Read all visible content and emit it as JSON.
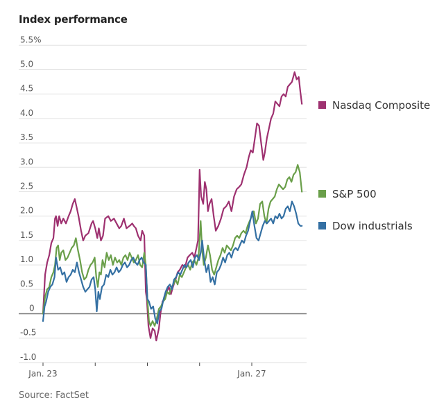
{
  "title": "Index performance",
  "source": "Source: FactSet",
  "chart_data": {
    "type": "line",
    "title": "Index performance",
    "xlabel": "",
    "ylabel": "",
    "ylim": [
      -1.0,
      5.5
    ],
    "xlim": [
      0,
      5
    ],
    "grid": true,
    "y_ticks": [
      {
        "value": 5.5,
        "label": "5.5%"
      },
      {
        "value": 5.0,
        "label": "5.0"
      },
      {
        "value": 4.5,
        "label": "4.5"
      },
      {
        "value": 4.0,
        "label": "4.0"
      },
      {
        "value": 3.5,
        "label": "3.5"
      },
      {
        "value": 3.0,
        "label": "3.0"
      },
      {
        "value": 2.5,
        "label": "2.5"
      },
      {
        "value": 2.0,
        "label": "2.0"
      },
      {
        "value": 1.5,
        "label": "1.5"
      },
      {
        "value": 1.0,
        "label": "1.0"
      },
      {
        "value": 0.5,
        "label": "0.5"
      },
      {
        "value": 0,
        "label": "0"
      },
      {
        "value": -0.5,
        "label": "-0.5"
      },
      {
        "value": -1.0,
        "label": "-1.0"
      }
    ],
    "x_ticks": [
      {
        "value": 0,
        "label": "Jan. 23"
      },
      {
        "value": 1,
        "label": ""
      },
      {
        "value": 2,
        "label": ""
      },
      {
        "value": 3,
        "label": ""
      },
      {
        "value": 4,
        "label": "Jan. 27"
      }
    ],
    "legend_placement": "right",
    "series": [
      {
        "name": "Nasdaq Composite",
        "color": "#9e3170",
        "x": [
          0,
          0.04,
          0.08,
          0.12,
          0.16,
          0.2,
          0.23,
          0.25,
          0.28,
          0.31,
          0.35,
          0.39,
          0.44,
          0.49,
          0.53,
          0.57,
          0.61,
          0.64,
          0.68,
          0.73,
          0.77,
          0.81,
          0.87,
          0.93,
          0.96,
          1.0,
          1.04,
          1.07,
          1.11,
          1.15,
          1.19,
          1.25,
          1.3,
          1.36,
          1.41,
          1.46,
          1.5,
          1.55,
          1.6,
          1.66,
          1.71,
          1.74,
          1.78,
          1.82,
          1.87,
          1.9,
          1.94,
          1.97,
          1.99,
          2.02,
          2.06,
          2.1,
          2.14,
          2.17,
          2.22,
          2.25,
          2.29,
          2.33,
          2.37,
          2.41,
          2.45,
          2.49,
          2.54,
          2.58,
          2.62,
          2.67,
          2.72,
          2.77,
          2.81,
          2.86,
          2.9,
          2.93,
          2.97,
          3.0,
          3.03,
          3.07,
          3.1,
          3.13,
          3.16,
          3.19,
          3.23,
          3.27,
          3.31,
          3.36,
          3.41,
          3.46,
          3.51,
          3.56,
          3.61,
          3.66,
          3.71,
          3.76,
          3.8,
          3.85,
          3.9,
          3.94,
          3.98,
          4.02,
          4.06,
          4.1,
          4.14,
          4.18,
          4.22,
          4.25,
          4.29,
          4.33,
          4.37,
          4.41,
          4.45,
          4.49,
          4.53,
          4.57,
          4.61,
          4.65,
          4.69,
          4.73,
          4.77,
          4.82,
          4.86,
          4.9,
          4.93,
          4.96
        ],
        "values": [
          0,
          0.8,
          1.05,
          1.2,
          1.45,
          1.55,
          1.95,
          2.0,
          1.8,
          2.0,
          1.85,
          1.95,
          1.85,
          2.0,
          2.1,
          2.25,
          2.35,
          2.2,
          2.0,
          1.7,
          1.5,
          1.6,
          1.65,
          1.85,
          1.9,
          1.75,
          1.55,
          1.75,
          1.5,
          1.6,
          1.95,
          2.0,
          1.9,
          1.95,
          1.85,
          1.75,
          1.8,
          1.95,
          1.75,
          1.8,
          1.85,
          1.8,
          1.75,
          1.6,
          1.5,
          1.7,
          1.6,
          0.45,
          0.3,
          -0.25,
          -0.5,
          -0.3,
          -0.35,
          -0.55,
          -0.3,
          0.0,
          0.25,
          0.3,
          0.45,
          0.55,
          0.4,
          0.55,
          0.7,
          0.85,
          0.9,
          1.0,
          0.95,
          1.15,
          1.2,
          1.25,
          1.15,
          1.3,
          1.5,
          2.95,
          2.4,
          2.25,
          2.7,
          2.55,
          2.1,
          2.25,
          2.35,
          2.0,
          1.7,
          1.8,
          1.95,
          2.15,
          2.2,
          2.3,
          2.1,
          2.4,
          2.55,
          2.6,
          2.65,
          2.85,
          3.0,
          3.2,
          3.35,
          3.3,
          3.6,
          3.9,
          3.85,
          3.5,
          3.15,
          3.3,
          3.6,
          3.8,
          4.0,
          4.1,
          4.35,
          4.3,
          4.25,
          4.45,
          4.5,
          4.45,
          4.65,
          4.7,
          4.75,
          4.95,
          4.8,
          4.85,
          4.55,
          4.3
        ]
      },
      {
        "name": "S&P 500",
        "color": "#6a9f4a",
        "x": [
          0,
          0.04,
          0.08,
          0.12,
          0.16,
          0.2,
          0.23,
          0.26,
          0.29,
          0.32,
          0.35,
          0.39,
          0.43,
          0.47,
          0.51,
          0.55,
          0.59,
          0.63,
          0.67,
          0.71,
          0.75,
          0.79,
          0.83,
          0.87,
          0.91,
          0.95,
          0.99,
          1.02,
          1.05,
          1.08,
          1.11,
          1.14,
          1.18,
          1.22,
          1.26,
          1.3,
          1.34,
          1.38,
          1.42,
          1.46,
          1.5,
          1.54,
          1.58,
          1.62,
          1.66,
          1.7,
          1.74,
          1.78,
          1.82,
          1.86,
          1.9,
          1.94,
          1.97,
          2.0,
          2.03,
          2.06,
          2.1,
          2.14,
          2.18,
          2.22,
          2.26,
          2.3,
          2.34,
          2.38,
          2.42,
          2.46,
          2.5,
          2.54,
          2.58,
          2.62,
          2.66,
          2.7,
          2.74,
          2.78,
          2.82,
          2.86,
          2.9,
          2.94,
          2.98,
          3.02,
          3.05,
          3.08,
          3.12,
          3.16,
          3.2,
          3.24,
          3.28,
          3.32,
          3.36,
          3.4,
          3.44,
          3.48,
          3.52,
          3.56,
          3.6,
          3.64,
          3.68,
          3.72,
          3.76,
          3.8,
          3.84,
          3.88,
          3.92,
          3.96,
          4.0,
          4.04,
          4.08,
          4.12,
          4.16,
          4.2,
          4.24,
          4.28,
          4.32,
          4.36,
          4.4,
          4.44,
          4.48,
          4.52,
          4.56,
          4.6,
          4.64,
          4.68,
          4.72,
          4.76,
          4.8,
          4.84,
          4.88,
          4.92,
          4.96
        ],
        "values": [
          0,
          0.35,
          0.5,
          0.55,
          0.75,
          0.85,
          1.0,
          1.35,
          1.4,
          1.1,
          1.25,
          1.3,
          1.1,
          1.15,
          1.25,
          1.35,
          1.4,
          1.55,
          1.3,
          1.1,
          0.85,
          0.7,
          0.75,
          0.9,
          1.0,
          1.05,
          1.15,
          0.75,
          0.55,
          0.85,
          0.8,
          1.1,
          0.95,
          1.25,
          1.1,
          1.2,
          1.0,
          1.15,
          1.05,
          1.1,
          1.0,
          1.15,
          1.2,
          1.1,
          1.25,
          1.15,
          1.05,
          1.1,
          1.2,
          1.0,
          0.95,
          1.25,
          1.0,
          0.3,
          -0.15,
          -0.25,
          -0.15,
          -0.25,
          -0.1,
          0.1,
          0.15,
          0.25,
          0.3,
          0.45,
          0.4,
          0.55,
          0.6,
          0.7,
          0.6,
          0.8,
          0.75,
          0.85,
          0.95,
          1.0,
          0.9,
          1.05,
          1.1,
          1.0,
          1.15,
          1.9,
          1.3,
          1.0,
          1.15,
          1.4,
          1.2,
          0.9,
          0.8,
          0.95,
          1.1,
          1.2,
          1.35,
          1.25,
          1.4,
          1.35,
          1.3,
          1.4,
          1.55,
          1.6,
          1.55,
          1.65,
          1.7,
          1.65,
          1.8,
          1.9,
          2.0,
          2.1,
          1.85,
          1.95,
          2.25,
          2.3,
          2.0,
          1.85,
          2.15,
          2.3,
          2.35,
          2.4,
          2.55,
          2.65,
          2.6,
          2.55,
          2.6,
          2.75,
          2.8,
          2.7,
          2.85,
          2.9,
          3.05,
          2.9,
          2.5
        ]
      },
      {
        "name": "Dow industrials",
        "color": "#3470a3",
        "x": [
          0,
          0.03,
          0.06,
          0.1,
          0.14,
          0.18,
          0.22,
          0.25,
          0.29,
          0.33,
          0.37,
          0.41,
          0.45,
          0.49,
          0.53,
          0.57,
          0.61,
          0.65,
          0.69,
          0.73,
          0.77,
          0.81,
          0.85,
          0.89,
          0.93,
          0.97,
          1.0,
          1.03,
          1.06,
          1.09,
          1.13,
          1.17,
          1.21,
          1.25,
          1.29,
          1.33,
          1.37,
          1.41,
          1.45,
          1.49,
          1.53,
          1.57,
          1.61,
          1.65,
          1.69,
          1.73,
          1.77,
          1.81,
          1.85,
          1.89,
          1.93,
          1.97,
          2.0,
          2.03,
          2.07,
          2.11,
          2.15,
          2.19,
          2.23,
          2.27,
          2.31,
          2.35,
          2.39,
          2.43,
          2.47,
          2.51,
          2.55,
          2.59,
          2.63,
          2.67,
          2.71,
          2.75,
          2.79,
          2.83,
          2.87,
          2.91,
          2.95,
          2.99,
          3.02,
          3.05,
          3.09,
          3.13,
          3.17,
          3.21,
          3.25,
          3.29,
          3.33,
          3.37,
          3.41,
          3.45,
          3.49,
          3.53,
          3.57,
          3.61,
          3.65,
          3.69,
          3.73,
          3.77,
          3.81,
          3.85,
          3.89,
          3.93,
          3.97,
          4.01,
          4.05,
          4.09,
          4.13,
          4.17,
          4.21,
          4.25,
          4.29,
          4.33,
          4.37,
          4.41,
          4.45,
          4.49,
          4.53,
          4.57,
          4.61,
          4.65,
          4.69,
          4.73,
          4.77,
          4.81,
          4.85,
          4.89,
          4.93,
          4.96
        ],
        "values": [
          -0.15,
          0.15,
          0.25,
          0.45,
          0.55,
          0.6,
          0.75,
          1.15,
          0.9,
          0.95,
          0.8,
          0.85,
          0.65,
          0.75,
          0.8,
          0.9,
          0.85,
          1.05,
          0.85,
          0.7,
          0.55,
          0.45,
          0.5,
          0.55,
          0.7,
          0.75,
          0.5,
          0.05,
          0.45,
          0.3,
          0.55,
          0.6,
          0.8,
          0.75,
          0.9,
          0.8,
          0.85,
          0.95,
          0.85,
          0.9,
          1.0,
          1.05,
          0.95,
          1.0,
          1.1,
          1.15,
          1.05,
          1.0,
          1.1,
          1.15,
          1.05,
          1.0,
          0.3,
          0.25,
          0.1,
          0.15,
          -0.1,
          -0.2,
          0.05,
          0.1,
          0.3,
          0.45,
          0.55,
          0.6,
          0.5,
          0.7,
          0.75,
          0.85,
          0.8,
          0.9,
          1.0,
          0.95,
          1.05,
          1.1,
          0.95,
          1.15,
          1.2,
          1.1,
          1.25,
          1.5,
          1.1,
          0.85,
          1.0,
          0.65,
          0.75,
          0.6,
          0.85,
          0.9,
          1.0,
          1.15,
          1.05,
          1.2,
          1.25,
          1.15,
          1.3,
          1.35,
          1.3,
          1.4,
          1.5,
          1.45,
          1.6,
          1.7,
          1.9,
          2.1,
          1.8,
          1.55,
          1.5,
          1.65,
          1.8,
          1.9,
          1.85,
          1.9,
          1.95,
          1.85,
          2.0,
          1.95,
          2.05,
          1.95,
          2.0,
          2.15,
          2.2,
          2.1,
          2.3,
          2.2,
          2.05,
          1.85,
          1.8,
          1.8
        ]
      }
    ]
  }
}
